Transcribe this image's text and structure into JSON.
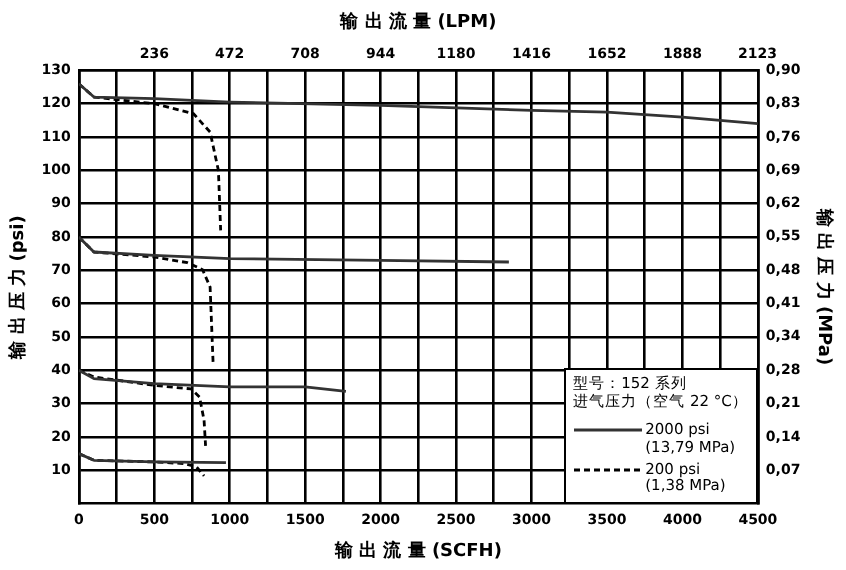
{
  "chart_data": {
    "type": "line",
    "xlabel": "输 出 流 量 (SCFH)",
    "x2label": "输 出 流 量 (LPM)",
    "ylabel": "输 出 压 力 (psi)",
    "y2label": "输 出 压 力 (MPa)",
    "legend_title": "型号：152 系列",
    "annotations": [
      "进气压力（空气 22 °C）"
    ],
    "legend": "bottom right",
    "grid": true,
    "marker": "none",
    "xlim": [
      0,
      4500
    ],
    "xticks": [
      0,
      {
        "value": 250,
        "label": null
      },
      500,
      {
        "value": 750,
        "label": null
      },
      1000,
      {
        "value": 1250,
        "label": null
      },
      1500,
      {
        "value": 1750,
        "label": null
      },
      2000,
      {
        "value": 2250,
        "label": null
      },
      2500,
      {
        "value": 2750,
        "label": null
      },
      3000,
      {
        "value": 3250,
        "label": null
      },
      3500,
      {
        "value": 3750,
        "label": null
      },
      4000,
      {
        "value": 4250,
        "label": null
      },
      4500
    ],
    "x2lim": [
      0,
      2124
    ],
    "x2ticks": [
      236,
      472,
      708,
      944,
      1180,
      1416,
      1652,
      1888,
      2123
    ],
    "ylim": [
      0,
      130
    ],
    "yticks": [
      10,
      20,
      30,
      40,
      50,
      60,
      70,
      80,
      90,
      100,
      110,
      120,
      130
    ],
    "y2lim": [
      0,
      0.896
    ],
    "y2ticks": [
      {
        "value": 0.069,
        "label": "0,07"
      },
      {
        "value": 0.138,
        "label": "0,14"
      },
      {
        "value": 0.207,
        "label": "0,21"
      },
      {
        "value": 0.276,
        "label": "0,28"
      },
      {
        "value": 0.345,
        "label": "0,34"
      },
      {
        "value": 0.414,
        "label": "0,41"
      },
      {
        "value": 0.483,
        "label": "0,48"
      },
      {
        "value": 0.552,
        "label": "0,55"
      },
      {
        "value": 0.621,
        "label": "0,62"
      },
      {
        "value": 0.689,
        "label": "0,69"
      },
      {
        "value": 0.758,
        "label": "0,76"
      },
      {
        "value": 0.827,
        "label": "0,83"
      },
      {
        "value": 0.896,
        "label": "0,90"
      }
    ],
    "series": [
      {
        "name": "2000 psi\n(13,79 MPa)",
        "color": "#333333",
        "line_style": "solid",
        "x": [
          0,
          100,
          500,
          1000,
          2000,
          3000,
          3500,
          4000,
          4500
        ],
        "values": [
          126,
          122,
          121.5,
          120.5,
          119.5,
          118,
          117.5,
          116,
          114
        ]
      },
      {
        "color": "#333333",
        "line_style": "solid",
        "x": [
          0,
          100,
          500,
          1000,
          2000,
          2850
        ],
        "values": [
          80,
          75.5,
          74.5,
          73.5,
          73,
          72.5
        ]
      },
      {
        "color": "#333333",
        "line_style": "solid",
        "x": [
          0,
          100,
          500,
          1000,
          1500,
          1770
        ],
        "values": [
          40,
          37.5,
          36,
          35,
          35,
          33.7
        ]
      },
      {
        "color": "#333333",
        "line_style": "solid",
        "x": [
          0,
          100,
          500,
          975
        ],
        "values": [
          15,
          13,
          12.5,
          12.3
        ]
      },
      {
        "name": "200 psi\n(1,38 MPa)",
        "color": "#000000",
        "line_style": "dashed",
        "x": [
          0,
          100,
          500,
          760,
          870,
          925,
          940
        ],
        "values": [
          126,
          122,
          120,
          117,
          111.5,
          100,
          82
        ]
      },
      {
        "color": "#000000",
        "line_style": "dashed",
        "x": [
          0,
          100,
          500,
          720,
          820,
          870,
          890
        ],
        "values": [
          80,
          75.5,
          74,
          72.3,
          70.2,
          65,
          42
        ]
      },
      {
        "color": "#000000",
        "line_style": "dashed",
        "x": [
          0,
          100,
          500,
          745,
          800,
          830,
          840
        ],
        "values": [
          40,
          38,
          35.5,
          34.4,
          32,
          25,
          17.3
        ]
      },
      {
        "color": "#000000",
        "line_style": "dashed",
        "x": [
          0,
          100,
          500,
          700,
          780,
          830
        ],
        "values": [
          15,
          13,
          12.5,
          12,
          11,
          8.3
        ]
      }
    ]
  }
}
